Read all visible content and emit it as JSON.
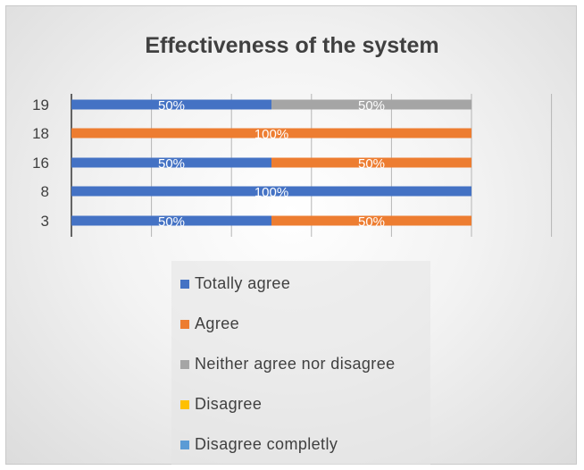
{
  "chart_data": {
    "type": "bar",
    "orientation": "horizontal",
    "stacked": true,
    "title": "Effectiveness of the system",
    "categories": [
      "3",
      "8",
      "16",
      "18",
      "19"
    ],
    "series": [
      {
        "name": "Totally agree",
        "color": "#4472C4",
        "values": [
          50,
          100,
          50,
          0,
          50
        ]
      },
      {
        "name": "Agree",
        "color": "#ED7D31",
        "values": [
          50,
          0,
          50,
          100,
          0
        ]
      },
      {
        "name": "Neither agree nor disagree",
        "color": "#A5A5A5",
        "values": [
          0,
          0,
          0,
          0,
          50
        ]
      },
      {
        "name": "Disagree",
        "color": "#FFC000",
        "values": [
          0,
          0,
          0,
          0,
          0
        ]
      },
      {
        "name": "Disagree completly",
        "color": "#5B9BD5",
        "values": [
          0,
          0,
          0,
          0,
          0
        ]
      }
    ],
    "value_unit": "%",
    "xlim": [
      0,
      120
    ],
    "grid": true,
    "legend_position": "bottom"
  }
}
